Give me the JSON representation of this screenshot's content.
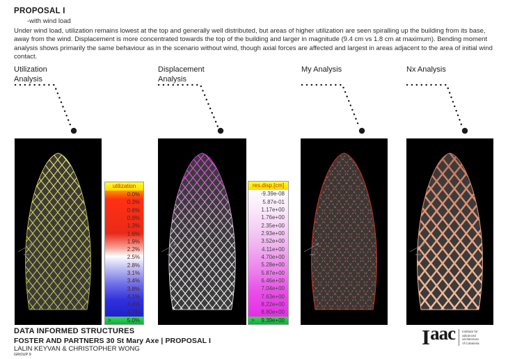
{
  "page": {
    "title": "PROPOSAL I",
    "subtitle": "-with wind load",
    "description": "Under wind load, utilization remains lowest at the top and generally well distributed, but areas of higher utilization are seen spiralling up the building from its base, away from the wind. Displacement is more concentrated towards the top of the building and larger in magnitude (9.4 cm vs 1.8 cm at maximum). Bending moment analysis shows primarily the same behaviour as in the scenario without wind, though axial forces are affected and largest in areas adjacent to the area of initial wind contact."
  },
  "sections": [
    {
      "label": "Utilization Analysis"
    },
    {
      "label": "Displacement Analysis"
    },
    {
      "label": "My Analysis"
    },
    {
      "label": "Nx Analysis"
    }
  ],
  "panels": {
    "wind_label": "wind",
    "colors": {
      "utilization_mesh": "#d6d24c",
      "displacement_mesh_top": "#e83ce8",
      "displacement_mesh_bottom": "#f2f2f2",
      "my_mesh": "#6a3333",
      "my_nodes": "#83a273",
      "my_rim": "#c23026",
      "nx_mesh": "#e9a181",
      "background": "#000000"
    }
  },
  "legends": {
    "utilization": {
      "title": "utilization",
      "values": [
        "0.0%",
        "0.3%",
        "0.6%",
        "0.9%",
        "1.3%",
        "1.6%",
        "1.9%",
        "2.2%",
        "2.5%",
        "2.8%",
        "3.1%",
        "3.4%",
        "3.8%",
        "4.1%",
        "4.4%",
        "4.7%"
      ],
      "overflow_prefix": ">",
      "overflow_value": "5.0%",
      "colors": {
        "title_bg": "#ffff00",
        "title_text": "#c03000",
        "scale_top": "#ff2a12",
        "scale_mid": "#ffffff",
        "scale_bottom": "#2020cb",
        "overflow_bg": "#00b33e"
      }
    },
    "displacement": {
      "title": "res.disp.[cm]",
      "values": [
        "-9.39e-08",
        "5.87e-01",
        "1.17e+00",
        "1.76e+00",
        "2.35e+00",
        "2.93e+00",
        "3.52e+00",
        "4.11e+00",
        "4.70e+00",
        "5.28e+00",
        "5.87e+00",
        "6.46e+00",
        "7.04e+00",
        "7.63e+00",
        "8.22e+00",
        "8.80e+00"
      ],
      "overflow_prefix": ">",
      "overflow_value": "9.39e+00",
      "colors": {
        "title_bg": "#ffff00",
        "title_text": "#c03000",
        "scale_top": "#ffffff",
        "scale_bottom": "#e72ce7",
        "overflow_bg": "#00b33e"
      }
    }
  },
  "footer": {
    "line1": "DATA INFORMED STRUCTURES",
    "line2": "FOSTER AND PARTNERS 30 St Mary Axe | PROPOSAL I",
    "line3": "LALIN KEYVAN & CHRISTOPHER WONG",
    "line4": "GROUP 9"
  },
  "logo": {
    "wordmark_i": "I",
    "wordmark_rest": "aac",
    "tagline": [
      "Institute for",
      "advanced",
      "architecture",
      "of Catalonia"
    ]
  }
}
